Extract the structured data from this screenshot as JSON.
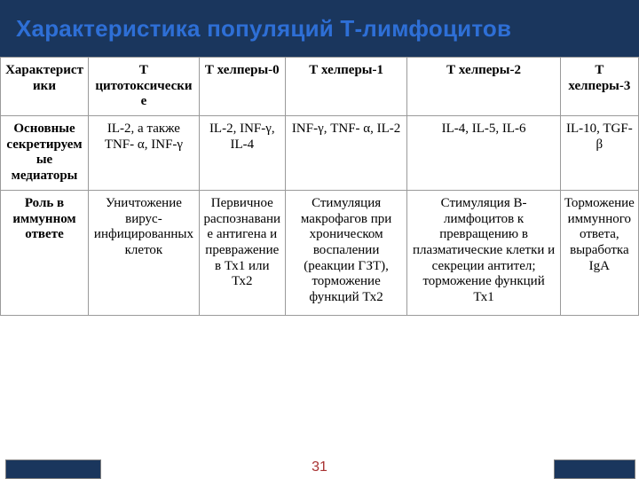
{
  "title": "Характеристика популяций Т-лимфоцитов",
  "slide_number": "31",
  "table": {
    "columns": [
      "Характеристики",
      "Т цитотоксические",
      "Т хелперы-0",
      "Т хелперы-1",
      "Т хелперы-2",
      "Т хелперы-3"
    ],
    "rows": [
      {
        "label": "Основные секретируемые медиаторы",
        "cells": [
          "IL-2, а также TNF- α, INF-γ",
          "IL-2, INF-γ, IL-4",
          "INF-γ, TNF- α, IL-2",
          "IL-4, IL-5, IL-6",
          "IL-10, TGF-β"
        ]
      },
      {
        "label": "Роль в иммунном ответе",
        "cells": [
          "Уничтожение вирус-инфицированных клеток",
          "Первичное распознавание антигена и превражение в Тх1 или Тх2",
          "Стимуляция макрофагов при хроническом воспалении (реакции ГЗТ), торможение функций Тх2",
          "Стимуляция В-лимфоцитов к превращению в плазматические клетки и секреции антител; торможение функций Тх1",
          "Торможение иммунного ответа, выработка IgA"
        ]
      }
    ]
  },
  "colors": {
    "header_bg": "#1a365d",
    "title_color": "#2e6fd6",
    "border": "#9a9a9a",
    "pagenum": "#a83232"
  }
}
